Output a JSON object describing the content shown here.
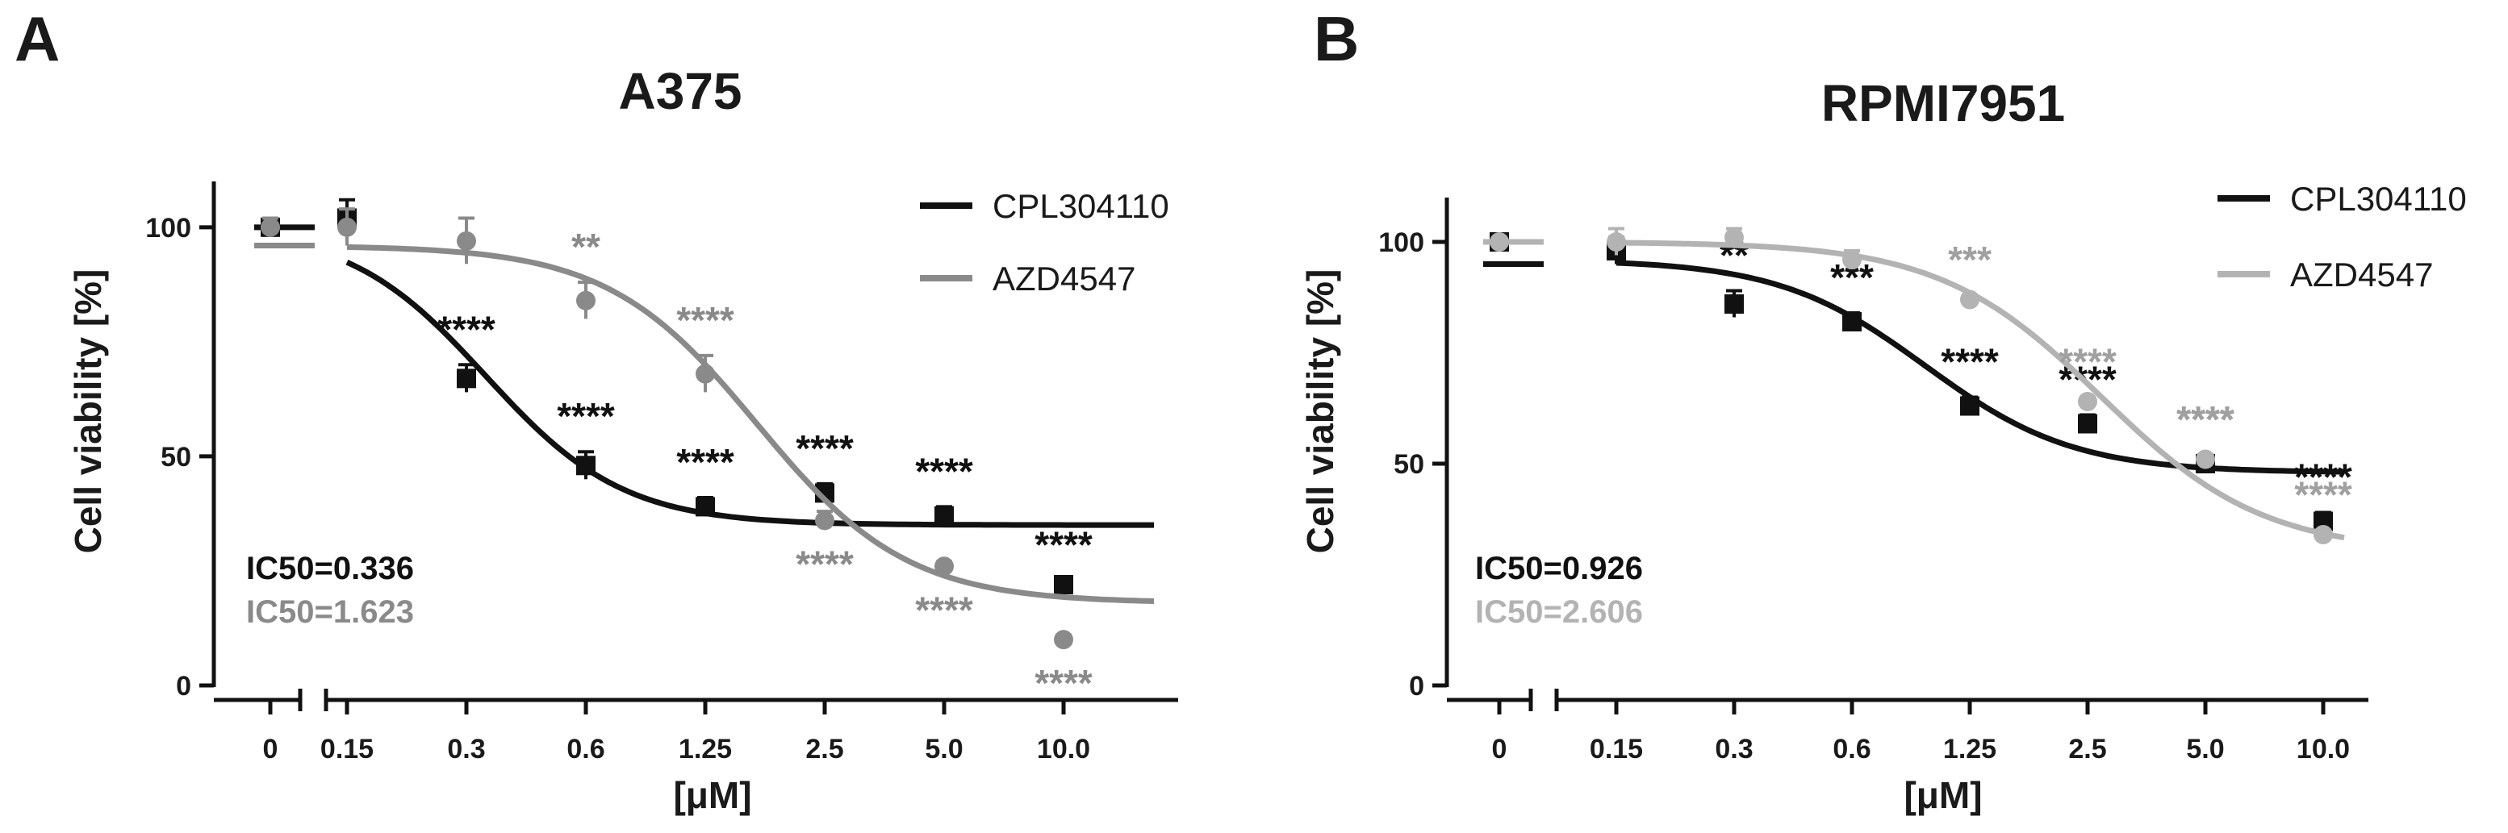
{
  "panels": [
    {
      "label": "A",
      "cell_line": "A375",
      "ic50": [
        {
          "series": "CPL304110",
          "text": "IC50=0.336"
        },
        {
          "series": "AZD4547",
          "text": "IC50=1.623"
        }
      ]
    },
    {
      "label": "B",
      "cell_line": "RPMI7951",
      "ic50": [
        {
          "series": "CPL304110",
          "text": "IC50=0.926"
        },
        {
          "series": "AZD4547",
          "text": "IC50=2.606"
        }
      ]
    }
  ],
  "colors": {
    "CPL304110": "#111111",
    "AZD4547_A": "#8a8a8a",
    "AZD4547_B": "#b3b3b3"
  },
  "chart_data": [
    {
      "type": "scatter",
      "title": "A375",
      "xlabel": "[μM]",
      "ylabel": "Cell viability [%]",
      "categories": [
        "0",
        "0.15",
        "0.3",
        "0.6",
        "1.25",
        "2.5",
        "5.0",
        "10.0"
      ],
      "ylim": [
        0,
        110
      ],
      "yticks": [
        0,
        50,
        100
      ],
      "legend": "top-right",
      "series": [
        {
          "name": "CPL304110",
          "marker": "square",
          "values": [
            100,
            102,
            67,
            48,
            39,
            42,
            37,
            22
          ],
          "errors": [
            2,
            4,
            3,
            3,
            2,
            2,
            2,
            1
          ],
          "significance": [
            "",
            "",
            "****",
            "****",
            "****",
            "****",
            "****",
            "****"
          ],
          "fit": {
            "top": 100,
            "bottom": 35,
            "ic50": 0.336,
            "hill": 2.5,
            "zero_value": 100
          }
        },
        {
          "name": "AZD4547",
          "marker": "circle",
          "values": [
            100,
            100,
            97,
            84,
            68,
            36,
            26,
            10
          ],
          "errors": [
            2,
            4,
            5,
            4,
            4,
            2,
            1,
            1
          ],
          "significance": [
            "",
            "",
            "",
            "**",
            "****",
            "****",
            "****",
            "****"
          ],
          "fit": {
            "top": 96,
            "bottom": 18,
            "ic50": 1.623,
            "hill": 2.3,
            "zero_value": 96
          }
        }
      ]
    },
    {
      "type": "scatter",
      "title": "RPMI7951",
      "xlabel": "[μM]",
      "ylabel": "Cell viability [%]",
      "categories": [
        "0",
        "0.15",
        "0.3",
        "0.6",
        "1.25",
        "2.5",
        "5.0",
        "10.0"
      ],
      "ylim": [
        0,
        110
      ],
      "yticks": [
        0,
        50,
        100
      ],
      "legend": "top-right",
      "series": [
        {
          "name": "CPL304110",
          "marker": "square",
          "values": [
            100,
            98,
            86,
            82,
            63,
            59,
            50,
            37
          ],
          "errors": [
            1,
            3,
            3,
            2,
            2,
            2,
            2,
            2
          ],
          "significance": [
            "",
            "",
            "**",
            "***",
            "****",
            "****",
            "****",
            "****"
          ],
          "fit": {
            "top": 96,
            "bottom": 48,
            "ic50": 0.926,
            "hill": 2.3,
            "zero_value": 95
          }
        },
        {
          "name": "AZD4547",
          "marker": "circle",
          "values": [
            100,
            100,
            101,
            96,
            87,
            64,
            51,
            34
          ],
          "errors": [
            1,
            3,
            2,
            2,
            1,
            1,
            1,
            1
          ],
          "significance": [
            "",
            "",
            "",
            "",
            "***",
            "****",
            "****",
            "****"
          ],
          "fit": {
            "top": 100,
            "bottom": 30,
            "ic50": 2.606,
            "hill": 2.1,
            "zero_value": 100
          }
        }
      ]
    }
  ]
}
